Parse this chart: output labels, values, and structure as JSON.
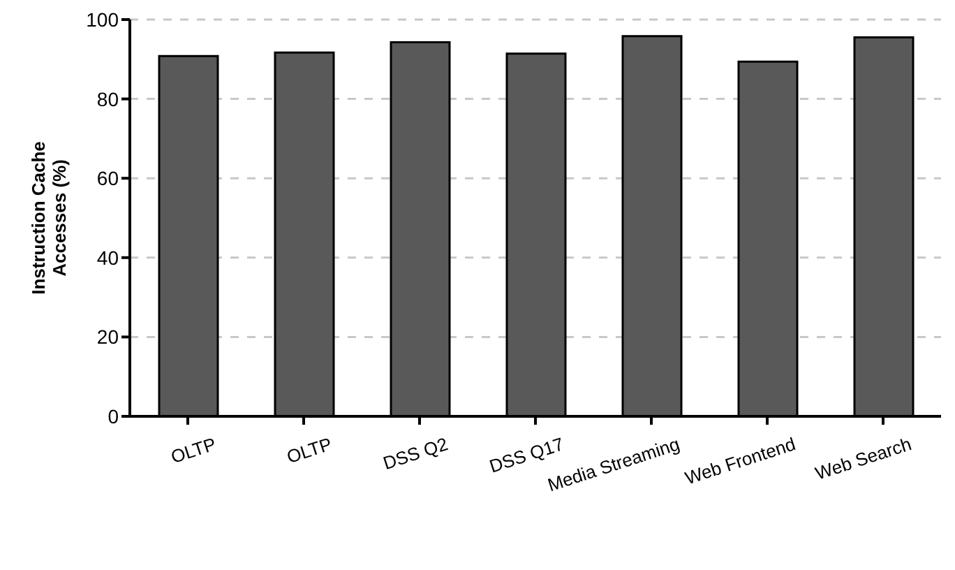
{
  "chart_data": {
    "type": "bar",
    "ylabel": "Instruction Cache Accesses (%)",
    "categories": [
      "OLTP",
      "OLTP",
      "DSS Q2",
      "DSS Q17",
      "Media Streaming",
      "Web Frontend",
      "Web Search"
    ],
    "values": [
      90.8,
      91.7,
      94.3,
      91.4,
      95.8,
      89.4,
      95.5
    ],
    "color": "#595959",
    "ylim": [
      0,
      100
    ],
    "yticks": [
      0,
      20,
      40,
      60,
      80,
      100
    ],
    "grid": "y"
  }
}
